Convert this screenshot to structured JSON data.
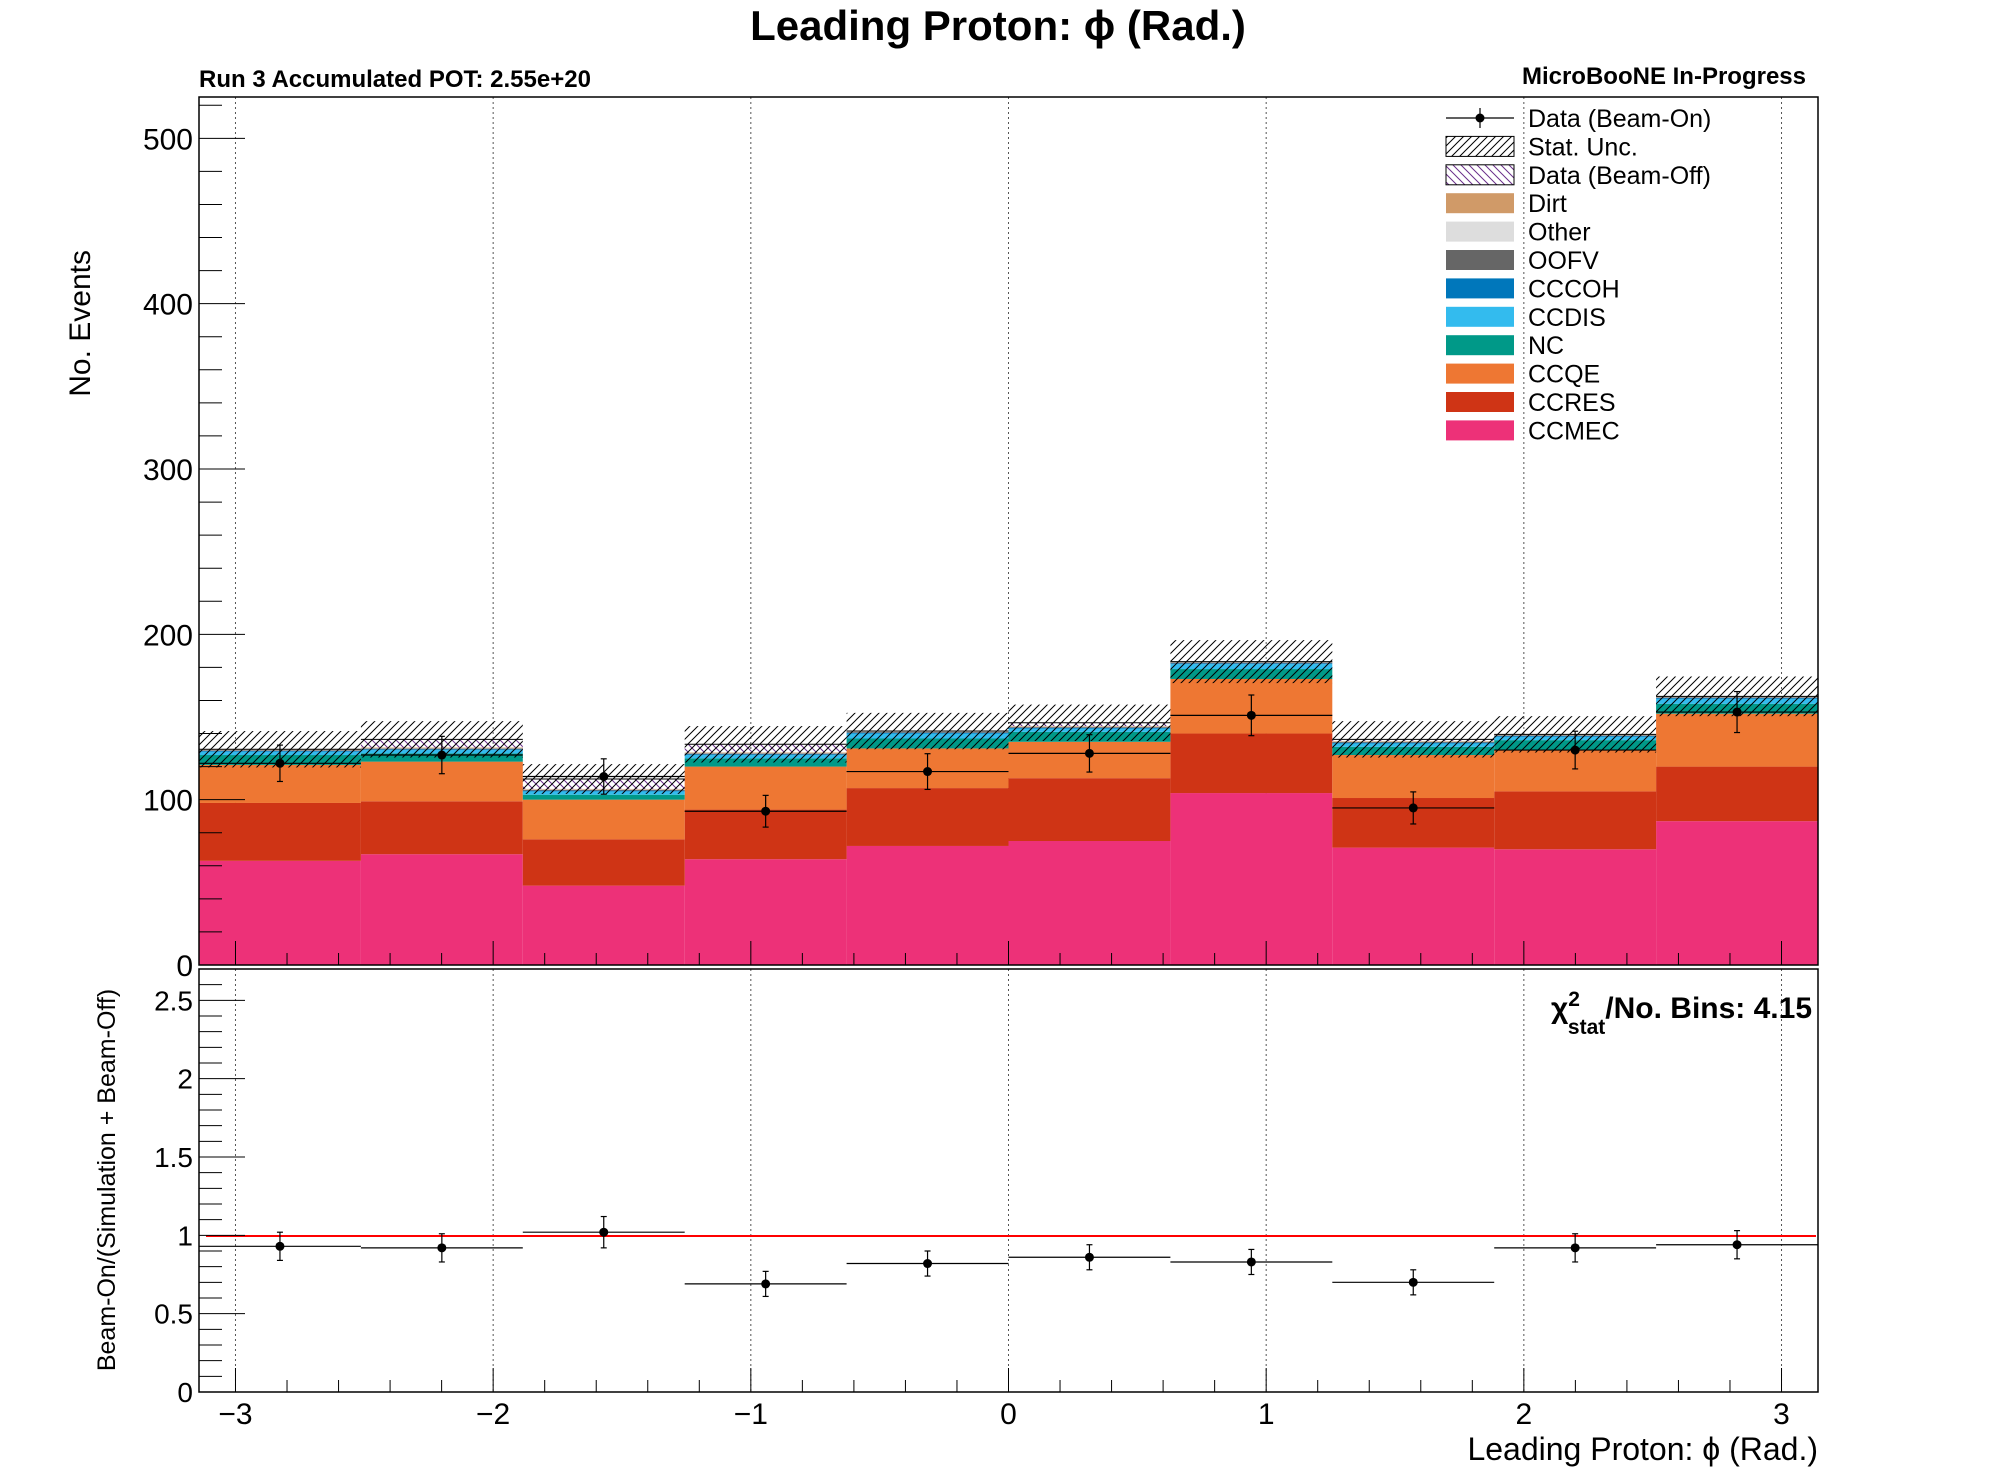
{
  "chart_data": [
    {
      "type": "bar",
      "stacked": true,
      "title": "Leading Proton:  ϕ (Rad.)",
      "top_left_label": "Run 3 Accumulated POT: 2.55e+20",
      "top_right_label": "MicroBooNE In-Progress",
      "ylabel": "No. Events",
      "ylim": [
        0,
        525
      ],
      "yticks": [
        "0",
        "100",
        "200",
        "300",
        "400",
        "500"
      ],
      "xlim": [
        -3.14159,
        3.14159
      ],
      "grid": "vertical dotted",
      "legend_position": "top-right",
      "bin_edges": [
        -3.14159,
        -2.51327,
        -1.88496,
        -1.25664,
        -0.62832,
        0.0,
        0.62832,
        1.25664,
        1.88496,
        2.51327,
        3.14159
      ],
      "series": [
        {
          "name": "CCMEC",
          "color": "#ed3178",
          "values": [
            63,
            67,
            48,
            64,
            72,
            75,
            104,
            71,
            70,
            87
          ]
        },
        {
          "name": "CCRES",
          "color": "#cf3415",
          "values": [
            35,
            32,
            28,
            30,
            35,
            38,
            36,
            30,
            35,
            33
          ]
        },
        {
          "name": "CCQE",
          "color": "#ee7733",
          "values": [
            23,
            24,
            24,
            26,
            24,
            22,
            33,
            26,
            25,
            32
          ]
        },
        {
          "name": "NC",
          "color": "#009988",
          "values": [
            6,
            5,
            3,
            5,
            6,
            6,
            6,
            5,
            6,
            6
          ]
        },
        {
          "name": "CCDIS",
          "color": "#33bbee",
          "values": [
            2,
            2,
            2,
            2,
            3,
            2,
            3,
            2,
            2,
            3
          ]
        },
        {
          "name": "CCCOH",
          "color": "#0077bb",
          "values": [
            0.5,
            0.5,
            0.5,
            0.5,
            0.5,
            0.5,
            0.5,
            0.5,
            0.5,
            0.5
          ]
        },
        {
          "name": "OOFV",
          "color": "#666666",
          "values": [
            0.5,
            0.5,
            0.5,
            0.5,
            0.5,
            0.5,
            0.5,
            0.5,
            0.5,
            0.5
          ]
        },
        {
          "name": "Other",
          "color": "#dddddd",
          "values": [
            0.2,
            0.2,
            0.2,
            0.2,
            0.2,
            0.2,
            0.2,
            0.2,
            0.2,
            0.2
          ]
        },
        {
          "name": "Dirt",
          "color": "#d09a68",
          "values": [
            0.3,
            0.3,
            0.3,
            0.3,
            0.3,
            0.3,
            0.3,
            0.3,
            0.3,
            0.3
          ]
        }
      ],
      "beam_off": {
        "name": "Data (Beam-Off)",
        "values": [
          0,
          5,
          6,
          5,
          0,
          2,
          0,
          1,
          0,
          0
        ]
      },
      "stat_unc": {
        "name": "Stat. Unc.",
        "values": [
          11,
          11,
          9,
          11,
          11,
          11,
          13,
          11,
          11,
          12
        ]
      },
      "data": {
        "name": "Data (Beam-On)",
        "values": [
          122,
          127,
          114,
          93,
          117,
          128,
          151,
          95,
          130,
          153
        ],
        "errors": [
          11,
          11.3,
          10.7,
          9.6,
          10.8,
          11.3,
          12.3,
          9.7,
          11.4,
          12.4
        ]
      },
      "legend": [
        "Data (Beam-On)",
        "Stat. Unc.",
        "Data (Beam-Off)",
        "Dirt",
        "Other",
        "OOFV",
        "CCCOH",
        "CCDIS",
        "NC",
        "CCQE",
        "CCRES",
        "CCMEC"
      ]
    },
    {
      "type": "scatter",
      "ylabel": "Beam-On/(Simulation + Beam-Off)",
      "xlabel": "Leading Proton:  ϕ (Rad.)",
      "ylim": [
        0,
        2.7
      ],
      "yticks": [
        "0",
        "0.5",
        "1",
        "1.5",
        "2",
        "2.5"
      ],
      "xticks": [
        "−3",
        "−2",
        "−1",
        "0",
        "1",
        "2",
        "3"
      ],
      "xlim": [
        -3.14159,
        3.14159
      ],
      "reference_line": {
        "y": 1,
        "color": "#ff0000"
      },
      "annotation": {
        "chi": "χ",
        "sup": "2",
        "sub": "stat",
        "rest": "/No. Bins: 4.15"
      },
      "values": [
        0.93,
        0.92,
        1.02,
        0.69,
        0.82,
        0.86,
        0.83,
        0.7,
        0.92,
        0.94
      ],
      "errors": [
        0.09,
        0.09,
        0.1,
        0.08,
        0.08,
        0.08,
        0.08,
        0.08,
        0.09,
        0.09
      ]
    }
  ]
}
